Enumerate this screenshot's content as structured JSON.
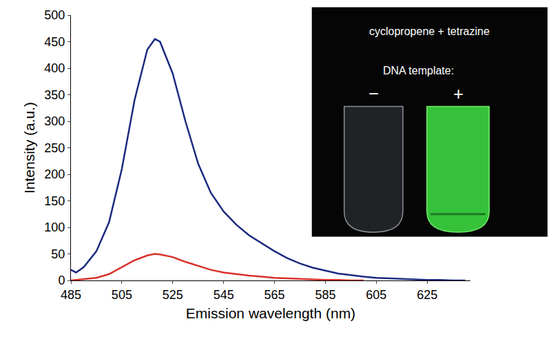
{
  "chart_data": {
    "type": "line",
    "x_label": "Emission wavelength (nm)",
    "y_label": "Intensity (a.u.)",
    "x": [
      485,
      487,
      490,
      495,
      500,
      505,
      510,
      515,
      518,
      520,
      525,
      530,
      535,
      540,
      545,
      550,
      555,
      560,
      565,
      570,
      575,
      580,
      585,
      590,
      595,
      600,
      605,
      610,
      615,
      620,
      625,
      630,
      635,
      640
    ],
    "series": [
      {
        "color": "#1c2a80",
        "values": [
          20,
          15,
          25,
          55,
          110,
          210,
          340,
          435,
          455,
          450,
          390,
          300,
          220,
          165,
          130,
          105,
          85,
          70,
          55,
          42,
          32,
          24,
          18,
          13,
          10,
          7,
          5,
          4,
          3,
          2,
          1,
          1,
          0,
          0
        ]
      },
      {
        "color": "#d9312a",
        "values": [
          0,
          1,
          2,
          5,
          12,
          25,
          38,
          47,
          50,
          49,
          44,
          35,
          27,
          20,
          15,
          12,
          9,
          7,
          5,
          4,
          3,
          2,
          1,
          1,
          0,
          0,
          null,
          null,
          null,
          null,
          null,
          null,
          null,
          null
        ]
      }
    ],
    "xlim": [
      485,
      642
    ],
    "xticks": [
      485,
      505,
      525,
      545,
      565,
      585,
      605,
      625
    ],
    "ylim": [
      0,
      500
    ],
    "yticks": [
      0,
      50,
      100,
      150,
      200,
      250,
      300,
      350,
      400,
      450,
      500
    ],
    "grid": false,
    "annotations": [
      "cyclopropene + tetrazine",
      "DNA template:",
      "−",
      "+"
    ]
  }
}
